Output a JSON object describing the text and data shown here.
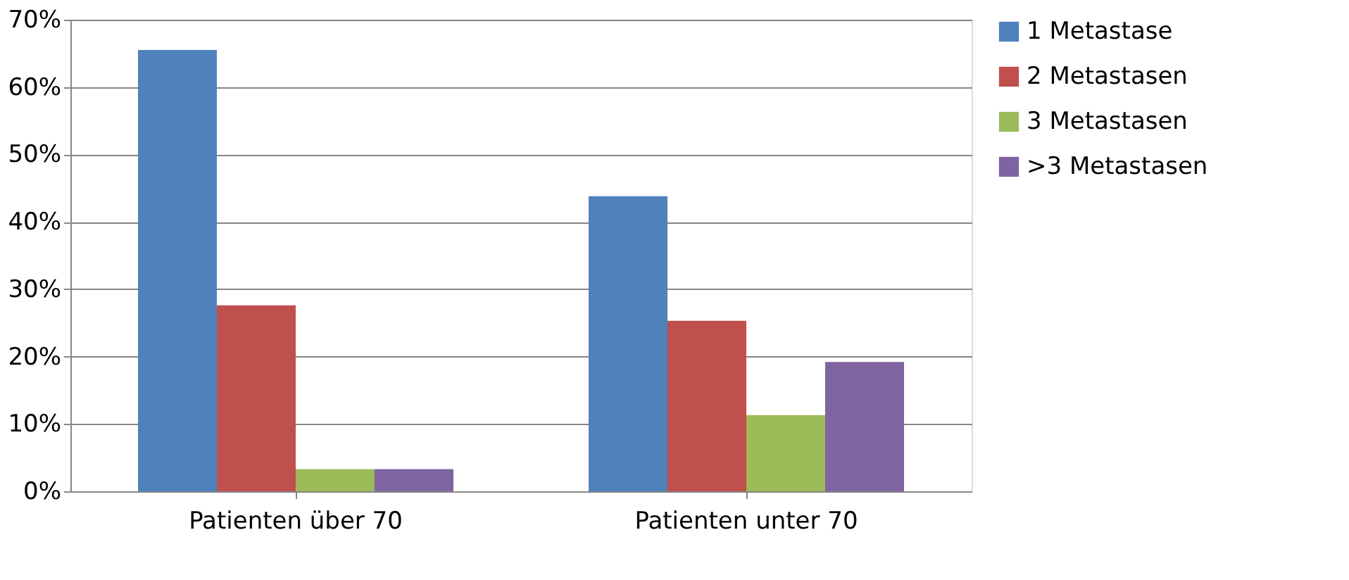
{
  "chart_data": {
    "type": "bar",
    "categories": [
      "Patienten über 70",
      "Patienten unter 70"
    ],
    "series": [
      {
        "name": "1 Metastase",
        "color": "#4f81bd",
        "values": [
          65.5,
          43.8
        ]
      },
      {
        "name": "2 Metastasen",
        "color": "#c0504d",
        "values": [
          27.6,
          25.3
        ]
      },
      {
        "name": "3 Metastasen",
        "color": "#9bbb59",
        "values": [
          3.3,
          11.3
        ]
      },
      {
        "name": ">3 Metastasen",
        "color": "#8064a2",
        "values": [
          3.3,
          19.2
        ]
      }
    ],
    "ylim": [
      0,
      70
    ],
    "yticks": [
      {
        "value": 0,
        "label": "0%"
      },
      {
        "value": 10,
        "label": "10%"
      },
      {
        "value": 20,
        "label": "20%"
      },
      {
        "value": 30,
        "label": "30%"
      },
      {
        "value": 40,
        "label": "40%"
      },
      {
        "value": 50,
        "label": "50%"
      },
      {
        "value": 60,
        "label": "60%"
      },
      {
        "value": 70,
        "label": "70%"
      }
    ],
    "grid": "y",
    "legend": "right"
  }
}
